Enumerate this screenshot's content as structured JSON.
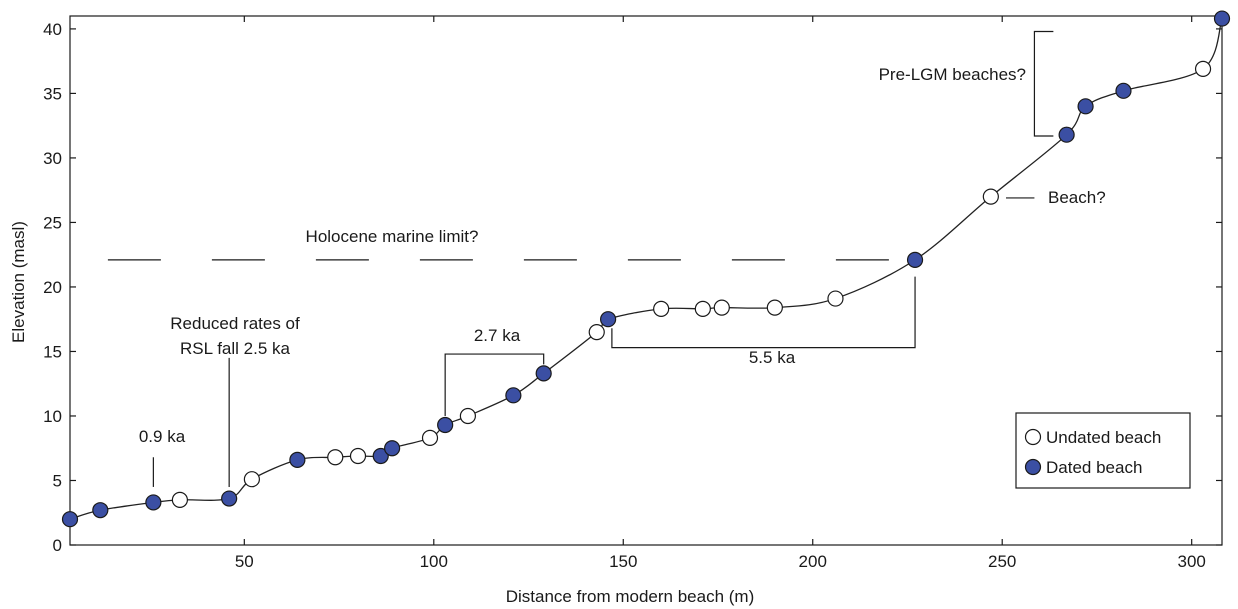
{
  "chart_data": {
    "type": "scatter",
    "xlabel": "Distance from modern beach (m)",
    "ylabel": "Elevation (masl)",
    "xlim": [
      4,
      308
    ],
    "ylim": [
      0,
      41
    ],
    "x_ticks": [
      50,
      100,
      150,
      200,
      250,
      300
    ],
    "y_ticks": [
      0,
      5,
      10,
      15,
      20,
      25,
      30,
      35,
      40
    ],
    "grid": false,
    "legend_position": "bottom-right",
    "colors": {
      "dated": "#3b4fa3",
      "undated": "#ffffff",
      "line": "#222222"
    },
    "series": [
      {
        "name": "Undated beach",
        "marker": "open-circle",
        "x": [
          33,
          52,
          74,
          80,
          99,
          109,
          143,
          160,
          171,
          176,
          190,
          206,
          247,
          303
        ],
        "y": [
          3.5,
          5.1,
          6.8,
          6.9,
          8.3,
          10.0,
          16.5,
          18.3,
          18.3,
          18.4,
          18.4,
          19.1,
          27.0,
          36.9
        ]
      },
      {
        "name": "Dated beach",
        "marker": "filled-circle",
        "x": [
          4,
          12,
          26,
          46,
          64,
          86,
          89,
          103,
          121,
          129,
          146,
          227,
          267,
          272,
          282,
          308
        ],
        "y": [
          2.0,
          2.7,
          3.3,
          3.6,
          6.6,
          6.9,
          7.5,
          9.3,
          11.6,
          13.3,
          17.5,
          22.1,
          31.8,
          34.0,
          35.2,
          40.8
        ]
      }
    ],
    "line": {
      "x": [
        4,
        12,
        26,
        33,
        46,
        52,
        64,
        74,
        80,
        86,
        89,
        99,
        103,
        109,
        121,
        129,
        143,
        146,
        160,
        171,
        176,
        190,
        206,
        227,
        247,
        267,
        272,
        282,
        303,
        308
      ],
      "y": [
        2.0,
        2.7,
        3.3,
        3.5,
        3.6,
        5.1,
        6.6,
        6.8,
        6.9,
        6.9,
        7.5,
        8.3,
        9.3,
        10.0,
        11.6,
        13.3,
        16.5,
        17.5,
        18.3,
        18.3,
        18.4,
        18.4,
        19.1,
        22.1,
        27.0,
        31.8,
        34.0,
        35.2,
        36.9,
        40.8
      ]
    },
    "marine_limit": {
      "y": 22.1,
      "label": "Holocene marine limit?"
    },
    "annotations": [
      {
        "text": "0.9 ka",
        "x": 26
      },
      {
        "text": "Reduced rates of",
        "x": 46
      },
      {
        "text": "RSL fall 2.5 ka",
        "x": 46
      },
      {
        "text": "2.7 ka",
        "x": [
          103,
          129
        ]
      },
      {
        "text": "5.5 ka",
        "x": [
          146,
          227
        ]
      },
      {
        "text": "Beach?",
        "x": 247
      },
      {
        "text": "Pre-LGM beaches?",
        "x": 267
      }
    ]
  }
}
